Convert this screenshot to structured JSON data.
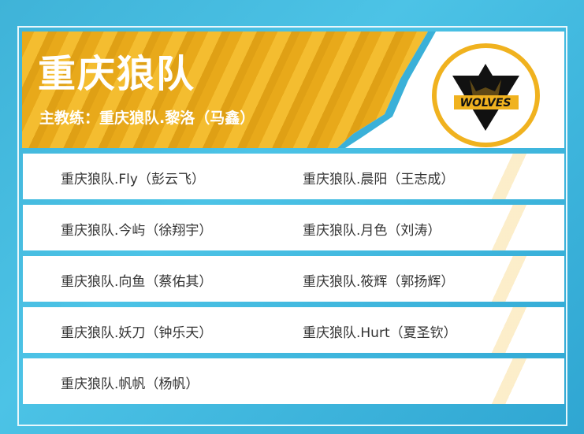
{
  "team": {
    "name": "重庆狼队",
    "coach_label": "主教练：重庆狼队.黎洛（马鑫）",
    "logo_text": "WOLVES"
  },
  "colors": {
    "accent": "#f0b21f",
    "background": "#3fb3d8"
  },
  "players": [
    [
      "重庆狼队.Fly（彭云飞）",
      "重庆狼队.晨阳（王志成）"
    ],
    [
      "重庆狼队.今屿（徐翔宇）",
      "重庆狼队.月色（刘涛）"
    ],
    [
      "重庆狼队.向鱼（蔡佑其）",
      "重庆狼队.筱辉（郭扬辉）"
    ],
    [
      "重庆狼队.妖刀（钟乐天）",
      "重庆狼队.Hurt（夏圣钦）"
    ],
    [
      "重庆狼队.帆帆（杨帆）",
      ""
    ]
  ]
}
